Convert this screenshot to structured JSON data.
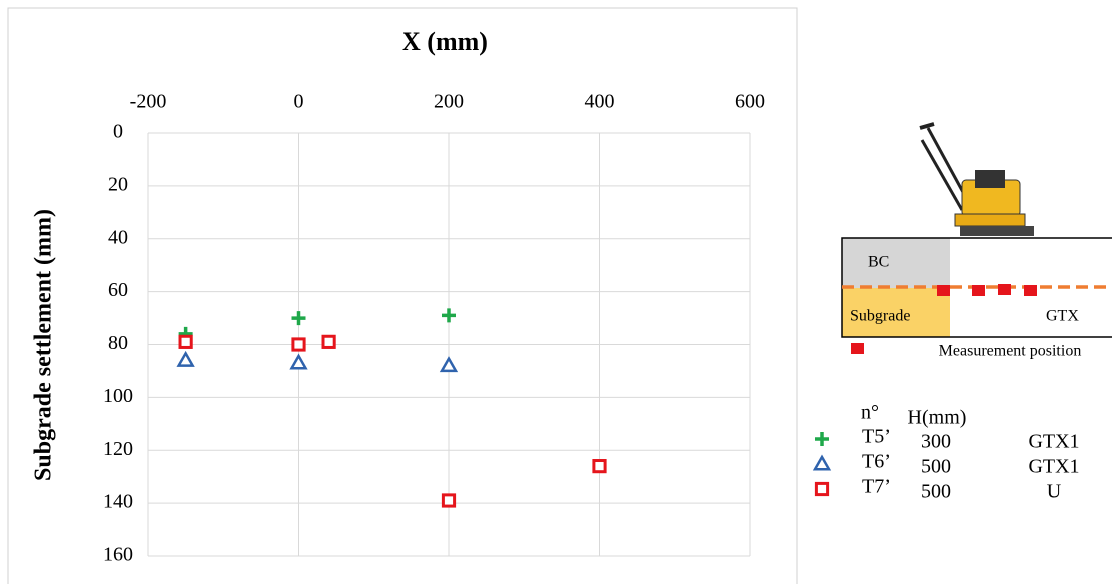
{
  "chart_data": {
    "type": "scatter",
    "x_label": "X (mm)",
    "y_label": "Subgrade settlement (mm)",
    "xlim": [
      -200,
      600
    ],
    "xticks": [
      -200,
      0,
      200,
      400,
      600
    ],
    "ylim": [
      0,
      160
    ],
    "yticks": [
      0,
      20,
      40,
      60,
      80,
      100,
      120,
      140,
      160
    ],
    "y_reversed": true,
    "x_axis_position": "top",
    "grid": true,
    "series": [
      {
        "name": "T5’",
        "color": "#1fa84a",
        "marker": "plus",
        "x": [
          -150,
          0,
          200
        ],
        "values": [
          76,
          70,
          69
        ]
      },
      {
        "name": "T6’",
        "color": "#2f63ad",
        "marker": "triangle",
        "x": [
          -150,
          0,
          200
        ],
        "values": [
          86,
          87,
          88
        ]
      },
      {
        "name": "T7’",
        "color": "#e5151c",
        "marker": "square",
        "x": [
          -150,
          0,
          40,
          200,
          400
        ],
        "values": [
          79,
          80,
          79,
          139,
          126
        ]
      }
    ],
    "legend_table": {
      "header": [
        "n°",
        "H(mm)"
      ],
      "rows": [
        [
          300,
          "GTX1"
        ],
        [
          500,
          "GTX1"
        ],
        [
          500,
          "U"
        ]
      ]
    }
  },
  "diagram": {
    "layer_top": "BC",
    "layer_bottom": "Subgrade",
    "reinforcement": "GTX",
    "marker_label": "Measurement position"
  }
}
